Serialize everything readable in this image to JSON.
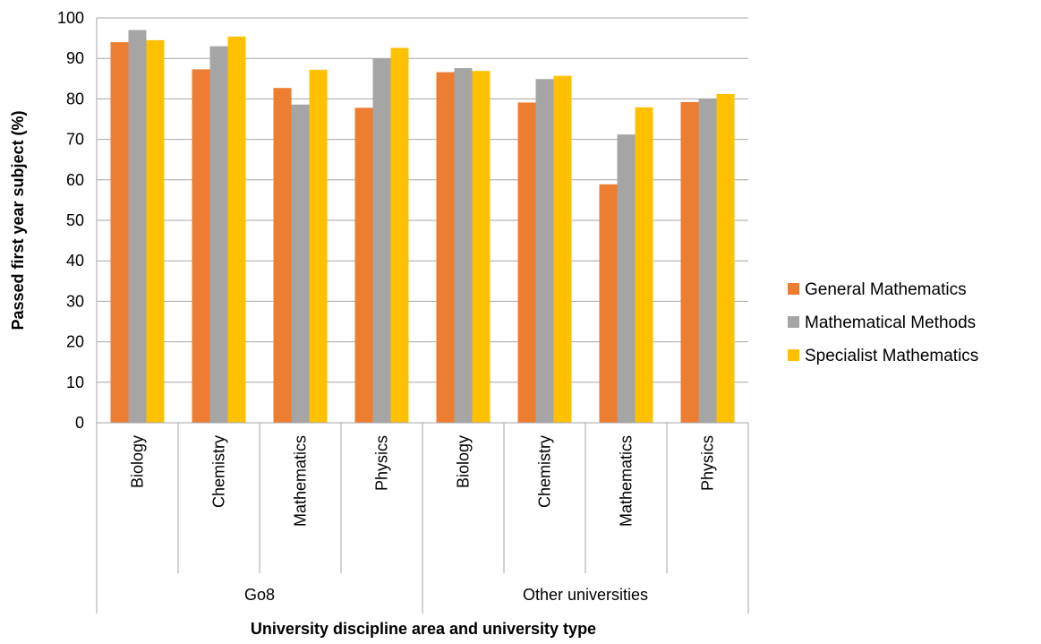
{
  "chart_data": {
    "type": "bar",
    "title": "",
    "xlabel": "University discipline area and university type",
    "ylabel": "Passed first year subject (%)",
    "ylim": [
      0,
      100
    ],
    "yticks": [
      0,
      10,
      20,
      30,
      40,
      50,
      60,
      70,
      80,
      90,
      100
    ],
    "grid": true,
    "legend_position": "right",
    "groups": [
      {
        "label": "Go8",
        "categories": [
          "Biology",
          "Chemistry",
          "Mathematics",
          "Physics"
        ]
      },
      {
        "label": "Other universities",
        "categories": [
          "Biology",
          "Chemistry",
          "Mathematics",
          "Physics"
        ]
      }
    ],
    "categories": [
      "Biology",
      "Chemistry",
      "Mathematics",
      "Physics",
      "Biology",
      "Chemistry",
      "Mathematics",
      "Physics"
    ],
    "series": [
      {
        "name": "General Mathematics",
        "color": "#ED7D31",
        "values": [
          94,
          87.3,
          82.7,
          77.8,
          86.6,
          79.1,
          58.9,
          79.2
        ]
      },
      {
        "name": "Mathematical Methods",
        "color": "#A5A5A5",
        "values": [
          97,
          93,
          78.6,
          90,
          87.6,
          84.9,
          71.2,
          80.1
        ]
      },
      {
        "name": "Specialist Mathematics",
        "color": "#FFC000",
        "values": [
          94.5,
          95.4,
          87.2,
          92.6,
          86.9,
          85.7,
          77.9,
          81.2
        ]
      }
    ]
  }
}
